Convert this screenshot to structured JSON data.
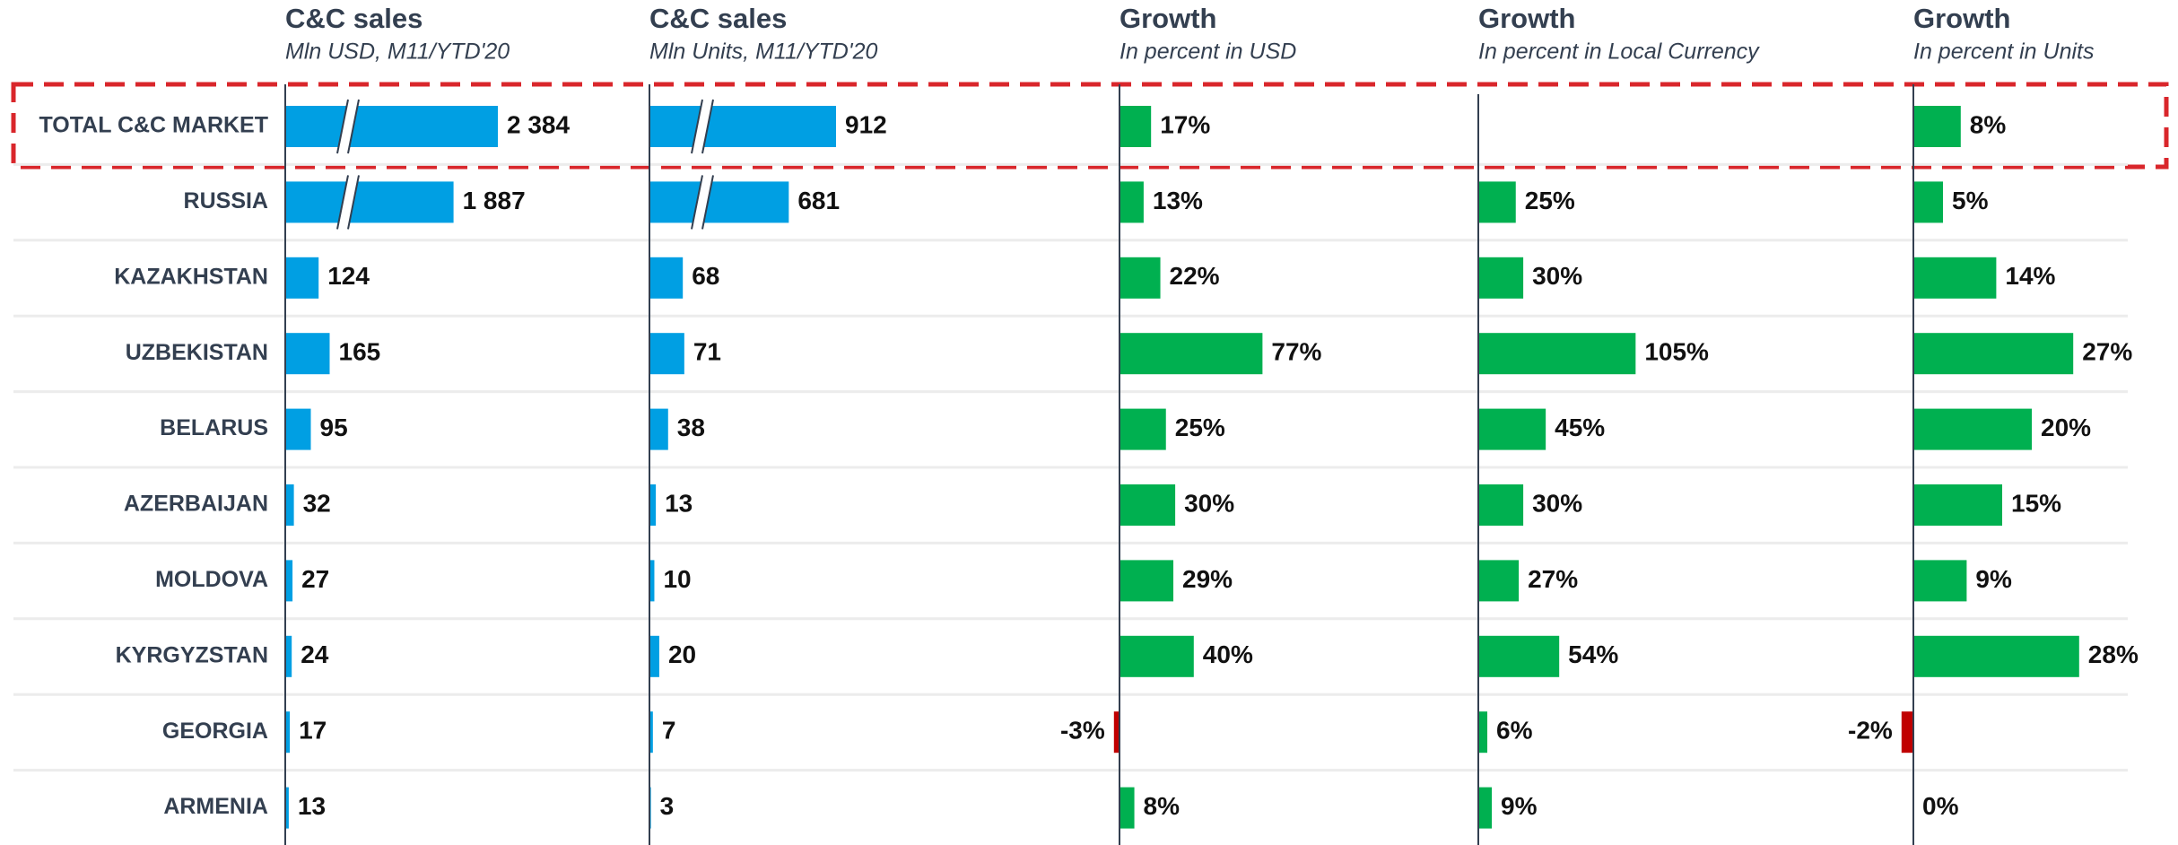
{
  "chart_data": [
    {
      "type": "bar",
      "orientation": "horizontal",
      "title": "C&C sales",
      "subtitle": "Mln USD, M11/YTD'20",
      "categories": [
        "TOTAL C&C MARKET",
        "RUSSIA",
        "KAZAKHSTAN",
        "UZBEKISTAN",
        "BELARUS",
        "AZERBAIJAN",
        "MOLDOVA",
        "KYRGYZSTAN",
        "GEORGIA",
        "ARMENIA"
      ],
      "values": [
        2384,
        1887,
        124,
        165,
        95,
        32,
        27,
        24,
        17,
        13
      ],
      "value_labels": [
        "2 384",
        "1 887",
        "124",
        "165",
        "95",
        "32",
        "27",
        "24",
        "17",
        "13"
      ],
      "color": "#009fe3",
      "broken": [
        true,
        true,
        false,
        false,
        false,
        false,
        false,
        false,
        false,
        false
      ]
    },
    {
      "type": "bar",
      "orientation": "horizontal",
      "title": "C&C sales",
      "subtitle": "Mln Units, M11/YTD'20",
      "values": [
        912,
        681,
        68,
        71,
        38,
        13,
        10,
        20,
        7,
        3
      ],
      "color": "#009fe3",
      "broken": [
        true,
        true,
        false,
        false,
        false,
        false,
        false,
        false,
        false,
        false
      ]
    },
    {
      "type": "bar",
      "orientation": "horizontal",
      "title": "Growth",
      "subtitle": "In percent in USD",
      "values": [
        17,
        13,
        22,
        77,
        25,
        30,
        29,
        40,
        -3,
        8
      ],
      "value_labels": [
        "17%",
        "13%",
        "22%",
        "77%",
        "25%",
        "30%",
        "29%",
        "40%",
        "-3%",
        "8%"
      ],
      "color": "#00b050",
      "negative_color": "#c00000"
    },
    {
      "type": "bar",
      "orientation": "horizontal",
      "title": "Growth",
      "subtitle": "In percent in Local Currency",
      "values": [
        null,
        25,
        30,
        105,
        45,
        30,
        27,
        54,
        6,
        9
      ],
      "value_labels": [
        null,
        "25%",
        "30%",
        "105%",
        "45%",
        "30%",
        "27%",
        "54%",
        "6%",
        "9%"
      ],
      "color": "#00b050",
      "negative_color": "#c00000"
    },
    {
      "type": "bar",
      "orientation": "horizontal",
      "title": "Growth",
      "subtitle": "In percent in Units",
      "values": [
        8,
        5,
        14,
        27,
        20,
        15,
        9,
        28,
        -2,
        0
      ],
      "value_labels": [
        "8%",
        "5%",
        "14%",
        "27%",
        "20%",
        "15%",
        "9%",
        "28%",
        "-2%",
        "0%"
      ],
      "color": "#00b050",
      "negative_color": "#c00000"
    }
  ]
}
